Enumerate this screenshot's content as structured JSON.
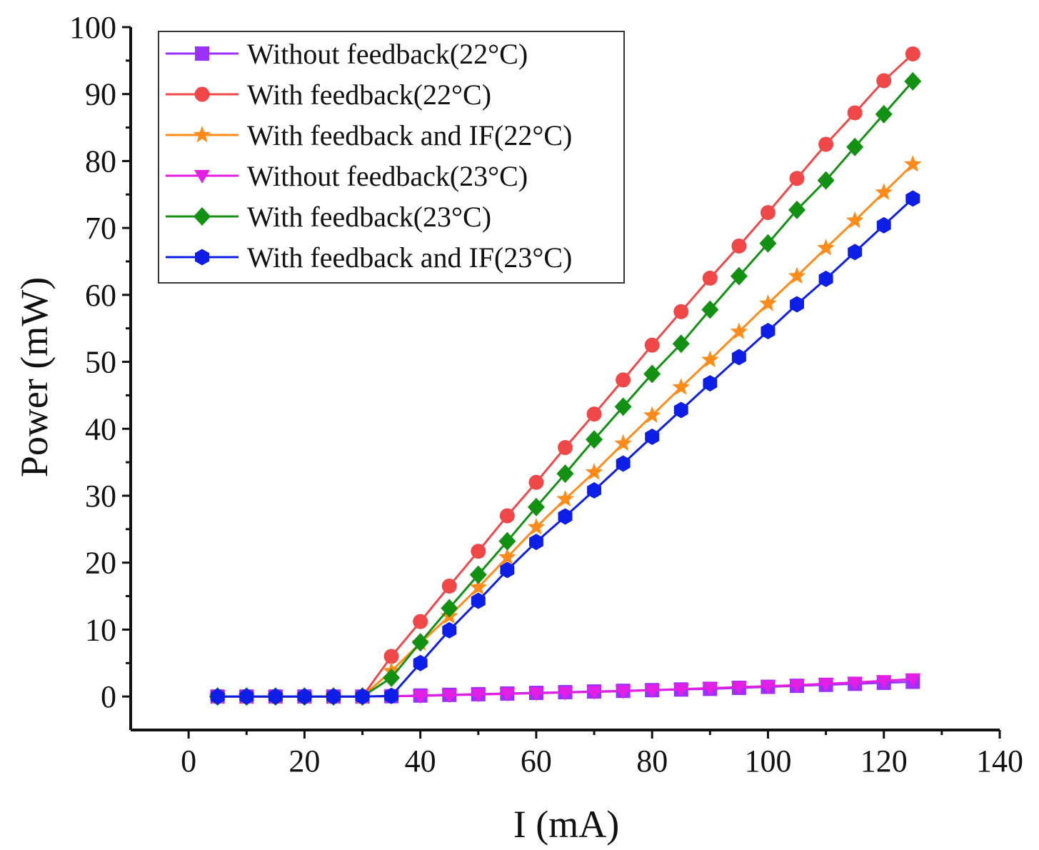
{
  "chart_data": {
    "type": "line",
    "title": "",
    "xlabel": "I (mA)",
    "ylabel": "Power (mW)",
    "xlim": [
      -10,
      140
    ],
    "ylim": [
      -5,
      100
    ],
    "xticks": [
      0,
      20,
      40,
      60,
      80,
      100,
      120,
      140
    ],
    "yticks": [
      0,
      10,
      20,
      30,
      40,
      50,
      60,
      70,
      80,
      90,
      100
    ],
    "grid": false,
    "legend_position": "top-left",
    "x": [
      5,
      10,
      15,
      20,
      25,
      30,
      35,
      40,
      45,
      50,
      55,
      60,
      65,
      70,
      75,
      80,
      85,
      90,
      95,
      100,
      105,
      110,
      115,
      120,
      125
    ],
    "series": [
      {
        "name": "Without feedback(22°C)",
        "color": "#9B30FF",
        "marker": "square",
        "values": [
          0,
          0,
          0,
          0,
          0,
          0,
          0.05,
          0.15,
          0.25,
          0.35,
          0.45,
          0.55,
          0.65,
          0.75,
          0.85,
          0.95,
          1.05,
          1.15,
          1.3,
          1.45,
          1.6,
          1.75,
          1.9,
          2.05,
          2.2
        ]
      },
      {
        "name": "With feedback(22°C)",
        "color": "#F04848",
        "marker": "circle",
        "values": [
          0,
          0,
          0,
          0,
          0,
          0,
          6,
          11.2,
          16.5,
          21.7,
          27,
          32,
          37.2,
          42.2,
          47.3,
          52.5,
          57.5,
          62.5,
          67.3,
          72.3,
          77.4,
          82.5,
          87.2,
          92,
          96
        ]
      },
      {
        "name": "With feedback and IF(22°C)",
        "color": "#FF8C1A",
        "marker": "star",
        "values": [
          0,
          0,
          0,
          0,
          0,
          0,
          3.8,
          8,
          12,
          16.3,
          20.8,
          25.3,
          29.5,
          33.5,
          37.8,
          42,
          46.2,
          50.3,
          54.5,
          58.7,
          62.8,
          67,
          71.1,
          75.3,
          79.5
        ]
      },
      {
        "name": "Without feedback(23°C)",
        "color": "#E21FE2",
        "marker": "triangle-down",
        "values": [
          0,
          0,
          0,
          0,
          0,
          0,
          0.05,
          0.1,
          0.2,
          0.3,
          0.4,
          0.5,
          0.6,
          0.7,
          0.8,
          0.95,
          1.1,
          1.25,
          1.4,
          1.55,
          1.7,
          1.9,
          2.1,
          2.35,
          2.6
        ]
      },
      {
        "name": "With feedback(23°C)",
        "color": "#139113",
        "marker": "diamond",
        "values": [
          0,
          0,
          0,
          0,
          0,
          0,
          2.8,
          8.1,
          13.2,
          18.2,
          23.2,
          28.3,
          33.3,
          38.4,
          43.3,
          48.2,
          52.7,
          57.8,
          62.8,
          67.7,
          72.7,
          77.1,
          82.1,
          87,
          91.9
        ]
      },
      {
        "name": "With feedback and IF(23°C)",
        "color": "#0D1FE6",
        "marker": "hexagon",
        "values": [
          0,
          0,
          0,
          0,
          0,
          0,
          0.1,
          5,
          9.9,
          14.3,
          18.9,
          23.1,
          26.9,
          30.8,
          34.8,
          38.8,
          42.8,
          46.8,
          50.7,
          54.6,
          58.6,
          62.4,
          66.4,
          70.4,
          74.4
        ]
      }
    ]
  }
}
